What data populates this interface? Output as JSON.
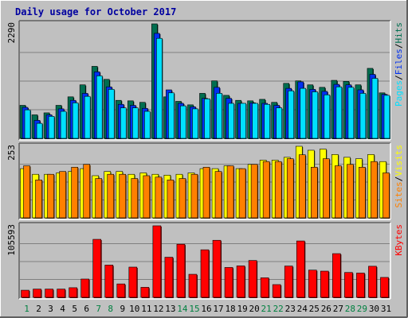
{
  "title": "Daily usage for October 2017",
  "colors": {
    "background": "#c0c0c0",
    "panel": "#c0c0c0",
    "title": "#0000a0",
    "hits": "#006e50",
    "files": "#0030f0",
    "pages": "#00e0ff",
    "visits": "#ffff00",
    "sites": "#ff8000",
    "kbytes": "#ff0000",
    "weekend_day": "#008040",
    "weekday": "#000000"
  },
  "chart_data": [
    {
      "type": "bar",
      "panel": "hits_files_pages",
      "ymax_label": "2290",
      "ylim": [
        0,
        2290
      ],
      "legend": [
        {
          "text": "Pages",
          "color": "#00e0ff"
        },
        {
          "text": "Files",
          "color": "#0030f0"
        },
        {
          "text": "Hits",
          "color": "#006e50"
        }
      ],
      "categories": [
        "1",
        "2",
        "3",
        "4",
        "5",
        "6",
        "7",
        "8",
        "9",
        "10",
        "11",
        "12",
        "13",
        "14",
        "15",
        "16",
        "17",
        "18",
        "19",
        "20",
        "21",
        "22",
        "23",
        "24",
        "25",
        "26",
        "27",
        "28",
        "29",
        "30",
        "31"
      ],
      "series": [
        {
          "name": "Hits",
          "values": [
            660,
            470,
            510,
            660,
            830,
            1070,
            1440,
            1180,
            760,
            750,
            720,
            2290,
            830,
            740,
            670,
            900,
            1150,
            860,
            760,
            750,
            780,
            720,
            1100,
            1150,
            1070,
            1020,
            1160,
            1140,
            1070,
            1400,
            910
          ]
        },
        {
          "name": "Files",
          "values": [
            620,
            360,
            470,
            590,
            760,
            900,
            1330,
            1030,
            680,
            660,
            600,
            2100,
            970,
            700,
            630,
            800,
            1020,
            800,
            700,
            710,
            700,
            660,
            1000,
            1130,
            980,
            940,
            1080,
            1070,
            970,
            1280,
            880
          ]
        },
        {
          "name": "Pages",
          "values": [
            570,
            300,
            440,
            540,
            710,
            840,
            1250,
            980,
            610,
            610,
            540,
            2000,
            910,
            650,
            590,
            790,
            900,
            700,
            700,
            700,
            680,
            610,
            950,
            1000,
            930,
            870,
            1030,
            1020,
            900,
            1200,
            860
          ]
        }
      ]
    },
    {
      "type": "bar",
      "panel": "visits_sites",
      "ymax_label": "253",
      "ylim": [
        0,
        253
      ],
      "legend": [
        {
          "text": "Sites",
          "color": "#ff8000"
        },
        {
          "text": "Visits",
          "color": "#ffff00"
        }
      ],
      "categories": [
        "1",
        "2",
        "3",
        "4",
        "5",
        "6",
        "7",
        "8",
        "9",
        "10",
        "11",
        "12",
        "13",
        "14",
        "15",
        "16",
        "17",
        "18",
        "19",
        "20",
        "21",
        "22",
        "23",
        "24",
        "25",
        "26",
        "27",
        "28",
        "29",
        "30",
        "31"
      ],
      "series": [
        {
          "name": "Visits",
          "values": [
            174,
            154,
            154,
            159,
            164,
            174,
            149,
            164,
            164,
            154,
            159,
            154,
            151,
            154,
            159,
            174,
            174,
            184,
            174,
            189,
            204,
            204,
            214,
            253,
            239,
            243,
            224,
            214,
            209,
            224,
            199
          ]
        },
        {
          "name": "Sites",
          "values": [
            184,
            134,
            154,
            164,
            179,
            189,
            139,
            154,
            154,
            139,
            149,
            144,
            134,
            139,
            154,
            179,
            164,
            184,
            174,
            189,
            199,
            199,
            209,
            223,
            179,
            209,
            184,
            189,
            179,
            199,
            159
          ]
        }
      ]
    },
    {
      "type": "bar",
      "panel": "kbytes",
      "ymax_label": "105593",
      "ylim": [
        0,
        105593
      ],
      "legend": [
        {
          "text": "KBytes",
          "color": "#ff0000"
        }
      ],
      "categories": [
        "1",
        "2",
        "3",
        "4",
        "5",
        "6",
        "7",
        "8",
        "9",
        "10",
        "11",
        "12",
        "13",
        "14",
        "15",
        "16",
        "17",
        "18",
        "19",
        "20",
        "21",
        "22",
        "23",
        "24",
        "25",
        "26",
        "27",
        "28",
        "29",
        "30",
        "31"
      ],
      "series": [
        {
          "name": "KBytes",
          "values": [
            10500,
            12200,
            12200,
            12200,
            14200,
            27000,
            85600,
            47600,
            19800,
            44600,
            14800,
            105600,
            59200,
            78400,
            34000,
            70200,
            84200,
            44100,
            46400,
            54400,
            28800,
            18800,
            46200,
            83200,
            40200,
            38700,
            64500,
            36700,
            35800,
            45900,
            29400
          ]
        }
      ]
    }
  ],
  "weekend_days": [
    1,
    7,
    8,
    14,
    15,
    21,
    22,
    28,
    29
  ]
}
